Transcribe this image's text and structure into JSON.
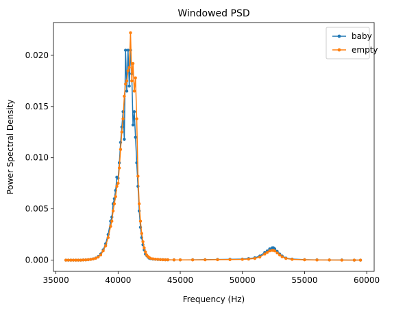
{
  "chart_data": {
    "type": "line",
    "title": "Windowed PSD",
    "xlabel": "Frequency (Hz)",
    "ylabel": "Power Spectral Density",
    "xlim": [
      34800,
      60600
    ],
    "ylim": [
      -0.0011,
      0.0232
    ],
    "xticks": [
      35000,
      40000,
      45000,
      50000,
      55000,
      60000
    ],
    "xtick_labels": [
      "35000",
      "40000",
      "45000",
      "50000",
      "55000",
      "60000"
    ],
    "yticks": [
      0.0,
      0.005,
      0.01,
      0.015,
      0.02
    ],
    "ytick_labels": [
      "0.000",
      "0.005",
      "0.010",
      "0.015",
      "0.020"
    ],
    "legend_position": "top-right",
    "series": [
      {
        "name": "baby",
        "color": "#1f77b4",
        "x": [
          35800,
          36000,
          36200,
          36400,
          36600,
          36800,
          37000,
          37200,
          37400,
          37600,
          37800,
          38000,
          38200,
          38400,
          38600,
          38800,
          39000,
          39200,
          39400,
          39500,
          39600,
          39700,
          39800,
          39900,
          40000,
          40100,
          40200,
          40300,
          40400,
          40500,
          40600,
          40700,
          40800,
          40900,
          41000,
          41100,
          41200,
          41300,
          41400,
          41500,
          41600,
          41700,
          41800,
          41900,
          42000,
          42100,
          42200,
          42300,
          42400,
          42500,
          42600,
          42800,
          43000,
          43200,
          43400,
          43600,
          43800,
          44000,
          44500,
          45000,
          46000,
          47000,
          48000,
          49000,
          50000,
          50500,
          51000,
          51400,
          51800,
          52000,
          52200,
          52400,
          52500,
          52600,
          52800,
          53000,
          53200,
          53500,
          54000,
          55000,
          56000,
          57000,
          58000,
          59000,
          59500
        ],
        "y": [
          0,
          0,
          0,
          0,
          0,
          0,
          0,
          1e-05,
          2e-05,
          4e-05,
          7e-05,
          0.00012,
          0.0002,
          0.00035,
          0.0006,
          0.001,
          0.0016,
          0.0025,
          0.0038,
          0.0042,
          0.0055,
          0.006,
          0.0068,
          0.0081,
          0.008,
          0.0095,
          0.0115,
          0.013,
          0.0145,
          0.0118,
          0.0205,
          0.0165,
          0.0205,
          0.017,
          0.0205,
          0.0182,
          0.0132,
          0.0145,
          0.012,
          0.0095,
          0.0072,
          0.0048,
          0.0032,
          0.0022,
          0.0015,
          0.001,
          0.0006,
          0.00045,
          0.0003,
          0.0002,
          0.00015,
          0.0001,
          8e-05,
          6e-05,
          5e-05,
          4e-05,
          3e-05,
          3e-05,
          2e-05,
          2e-05,
          3e-05,
          4e-05,
          6e-05,
          8e-05,
          0.0001,
          0.00015,
          0.00022,
          0.0004,
          0.00075,
          0.0009,
          0.0011,
          0.0012,
          0.0012,
          0.0011,
          0.00085,
          0.0006,
          0.0004,
          0.0002,
          0.0001,
          4e-05,
          2e-05,
          1e-05,
          1e-05,
          0,
          0
        ]
      },
      {
        "name": "empty",
        "color": "#ff7f0e",
        "x": [
          35800,
          36000,
          36200,
          36400,
          36600,
          36800,
          37000,
          37200,
          37400,
          37600,
          37800,
          38000,
          38200,
          38400,
          38600,
          38800,
          39000,
          39200,
          39400,
          39500,
          39600,
          39700,
          39800,
          39900,
          40000,
          40100,
          40200,
          40300,
          40400,
          40500,
          40600,
          40700,
          40800,
          40900,
          41000,
          41100,
          41200,
          41300,
          41400,
          41500,
          41600,
          41700,
          41800,
          41900,
          42000,
          42100,
          42200,
          42300,
          42400,
          42500,
          42600,
          42800,
          43000,
          43200,
          43400,
          43600,
          43800,
          44000,
          44500,
          45000,
          46000,
          47000,
          48000,
          49000,
          50000,
          50500,
          51000,
          51400,
          51800,
          52000,
          52200,
          52400,
          52500,
          52600,
          52800,
          53000,
          53200,
          53500,
          54000,
          55000,
          56000,
          57000,
          58000,
          59000,
          59500
        ],
        "y": [
          0,
          0,
          0,
          0,
          0,
          0,
          0,
          1e-05,
          2e-05,
          4e-05,
          7e-05,
          0.00011,
          0.00018,
          0.0003,
          0.0005,
          0.0009,
          0.0014,
          0.0022,
          0.0033,
          0.0038,
          0.0048,
          0.0055,
          0.0062,
          0.0072,
          0.0075,
          0.009,
          0.0108,
          0.0125,
          0.0138,
          0.016,
          0.0172,
          0.0175,
          0.0185,
          0.0188,
          0.0222,
          0.0175,
          0.0192,
          0.0165,
          0.0178,
          0.0138,
          0.0082,
          0.0055,
          0.0038,
          0.0026,
          0.0018,
          0.0012,
          0.0008,
          0.0005,
          0.00035,
          0.00025,
          0.00018,
          0.00012,
          9e-05,
          7e-05,
          5e-05,
          4e-05,
          3e-05,
          3e-05,
          2e-05,
          2e-05,
          2e-05,
          3e-05,
          4e-05,
          5e-05,
          7e-05,
          0.0001,
          0.00016,
          0.0003,
          0.0006,
          0.00075,
          0.0009,
          0.00095,
          0.00095,
          0.0009,
          0.0007,
          0.0005,
          0.00032,
          0.00016,
          7e-05,
          3e-05,
          1e-05,
          1e-05,
          0,
          0,
          0
        ]
      }
    ]
  }
}
